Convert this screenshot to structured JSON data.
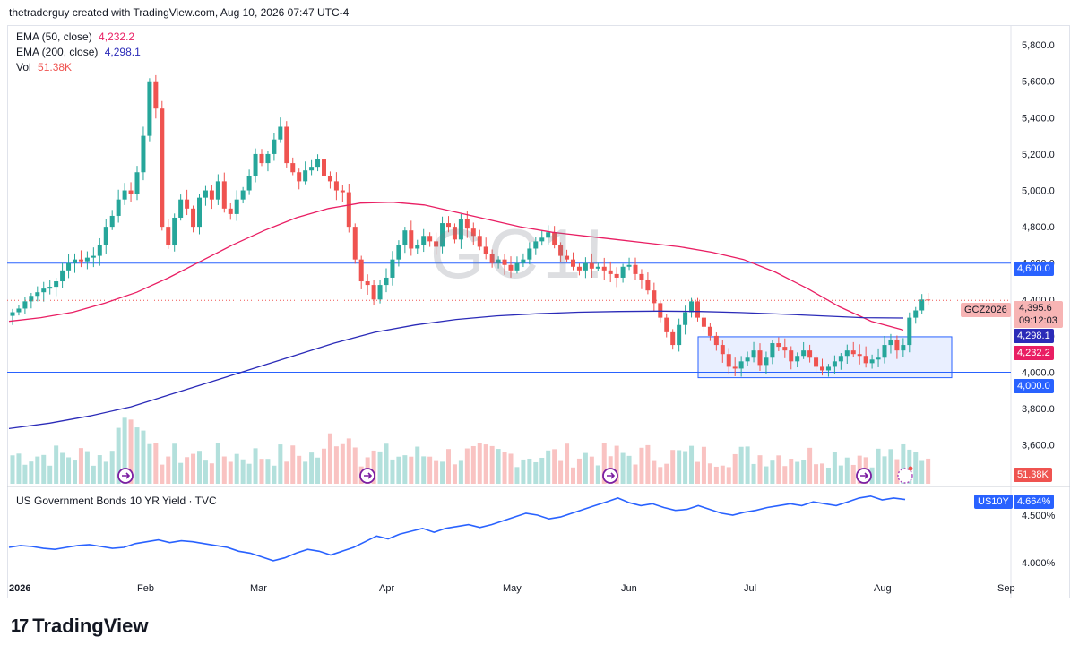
{
  "header": {
    "attribution": "thetraderguy created with TradingView.com, Aug 10, 2026 07:47 UTC-4"
  },
  "legend": {
    "ema50_label": "EMA (50, close)",
    "ema50_value": "4,232.2",
    "ema200_label": "EMA (200, close)",
    "ema200_value": "4,298.1",
    "vol_label": "Vol",
    "vol_value": "51.38K"
  },
  "watermark": "GC1!",
  "price_axis": {
    "ticks": [
      "5,800.0",
      "5,600.0",
      "5,400.0",
      "5,200.0",
      "5,000.0",
      "4,800.0",
      "4,600.0",
      "4,400.0",
      "4,200.0",
      "4,000.0",
      "3,800.0",
      "3,600.0"
    ]
  },
  "price_labels": {
    "level_high": "4,600.0",
    "level_low": "4,000.0",
    "symbol": "GCZ2026",
    "last_price": "4,395.6",
    "countdown": "09:12:03",
    "ema200": "4,298.1",
    "ema50": "4,232.2",
    "volume": "51.38K"
  },
  "pane2": {
    "title": "US Government Bonds 10 YR Yield · TVC",
    "symbol": "US10Y",
    "last_value": "4.664%",
    "ticks": [
      "4.500%",
      "4.000%"
    ]
  },
  "time_axis": {
    "labels": [
      "2026",
      "Feb",
      "Mar",
      "Apr",
      "May",
      "Jun",
      "Jul",
      "Aug",
      "Sep"
    ]
  },
  "footer": {
    "logo_text": "TradingView",
    "logo_mark": "17"
  },
  "colors": {
    "up": "#26a69a",
    "down": "#ef5350",
    "ema50": "#e91e63",
    "ema200": "#2b2bb8",
    "level_line": "#2962ff",
    "yield_line": "#2962ff",
    "range_box": "#2962ff"
  },
  "chart_data": [
    {
      "type": "candlestick",
      "symbol": "GC1!",
      "title": "",
      "yaxis": {
        "range": [
          3500,
          5850
        ],
        "ticks": [
          5800,
          5600,
          5400,
          5200,
          5000,
          4800,
          4600,
          4400,
          4200,
          4000,
          3800,
          3600
        ]
      },
      "xaxis": {
        "range": [
          "2025-12-29",
          "2026-09-08"
        ],
        "labels": [
          "2026",
          "Feb",
          "Mar",
          "Apr",
          "May",
          "Jun",
          "Jul",
          "Aug",
          "Sep"
        ]
      },
      "horizontal_levels": [
        4600,
        4000
      ],
      "range_box": {
        "x0": "2026-06-18",
        "x1": "2026-08-22",
        "y0": 3970,
        "y1": 4195
      },
      "candles_close": [
        4330,
        4350,
        4390,
        4420,
        4440,
        4460,
        4470,
        4500,
        4560,
        4600,
        4620,
        4610,
        4630,
        4640,
        4700,
        4800,
        4860,
        4950,
        5000,
        4980,
        5100,
        5300,
        5600,
        5450,
        4800,
        4700,
        4850,
        4950,
        4900,
        4800,
        4960,
        5000,
        4950,
        5050,
        4900,
        4870,
        4950,
        5000,
        5080,
        5200,
        5150,
        5200,
        5280,
        5350,
        5150,
        5100,
        5050,
        5110,
        5130,
        5170,
        5080,
        5050,
        5000,
        4990,
        4800,
        4620,
        4500,
        4480,
        4400,
        4480,
        4520,
        4620,
        4700,
        4780,
        4680,
        4700,
        4750,
        4720,
        4690,
        4820,
        4800,
        4730,
        4840,
        4790,
        4750,
        4690,
        4650,
        4600,
        4620,
        4590,
        4560,
        4600,
        4620,
        4680,
        4720,
        4740,
        4770,
        4700,
        4640,
        4620,
        4580,
        4560,
        4600,
        4570,
        4580,
        4560,
        4540,
        4520,
        4580,
        4590,
        4540,
        4510,
        4450,
        4380,
        4300,
        4220,
        4150,
        4260,
        4330,
        4390,
        4300,
        4250,
        4200,
        4150,
        4100,
        4030,
        4020,
        4060,
        4080,
        4120,
        4040,
        4080,
        4160,
        4140,
        4120,
        4060,
        4090,
        4120,
        4080,
        4030,
        4010,
        4030,
        4060,
        4090,
        4120,
        4100,
        4090,
        4050,
        4070,
        4080,
        4150,
        4180,
        4120,
        4150,
        4300,
        4340,
        4400,
        4395.6
      ],
      "ema50": [
        4280,
        4300,
        4330,
        4380,
        4440,
        4520,
        4610,
        4700,
        4780,
        4850,
        4900,
        4930,
        4935,
        4920,
        4880,
        4840,
        4800,
        4770,
        4750,
        4730,
        4710,
        4690,
        4660,
        4620,
        4550,
        4460,
        4360,
        4280,
        4232.2
      ],
      "ema200": [
        3690,
        3720,
        3760,
        3810,
        3880,
        3950,
        4020,
        4090,
        4160,
        4220,
        4260,
        4290,
        4310,
        4322,
        4330,
        4334,
        4336,
        4334,
        4328,
        4320,
        4310,
        4300,
        4298.1
      ],
      "volume_last": "51.38K"
    },
    {
      "type": "line",
      "symbol": "US10Y",
      "title": "US Government Bonds 10 YR Yield · TVC",
      "yaxis": {
        "ticks": [
          4.5,
          4.0
        ],
        "unit": "%"
      },
      "values": [
        4.16,
        4.18,
        4.17,
        4.15,
        4.14,
        4.16,
        4.18,
        4.19,
        4.17,
        4.15,
        4.16,
        4.2,
        4.22,
        4.24,
        4.21,
        4.23,
        4.22,
        4.2,
        4.18,
        4.16,
        4.12,
        4.1,
        4.06,
        4.02,
        4.05,
        4.1,
        4.14,
        4.12,
        4.08,
        4.12,
        4.16,
        4.22,
        4.28,
        4.25,
        4.3,
        4.33,
        4.36,
        4.32,
        4.36,
        4.38,
        4.4,
        4.37,
        4.4,
        4.44,
        4.48,
        4.52,
        4.5,
        4.46,
        4.48,
        4.52,
        4.56,
        4.6,
        4.64,
        4.68,
        4.63,
        4.6,
        4.62,
        4.58,
        4.55,
        4.56,
        4.6,
        4.56,
        4.52,
        4.5,
        4.53,
        4.55,
        4.58,
        4.6,
        4.62,
        4.6,
        4.64,
        4.62,
        4.6,
        4.64,
        4.68,
        4.7,
        4.66,
        4.68,
        4.664
      ],
      "last": 4.664
    }
  ]
}
